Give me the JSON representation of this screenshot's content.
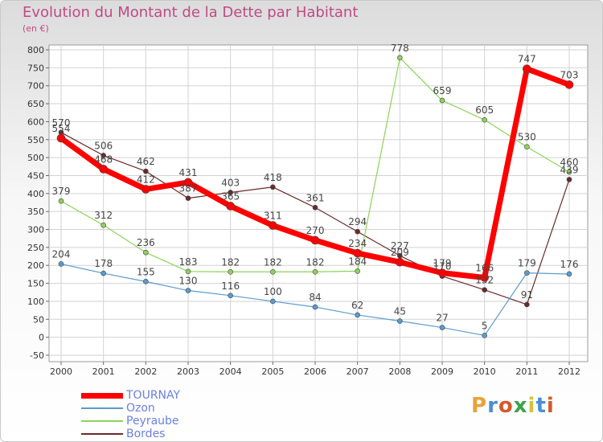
{
  "title": "Evolution du Montant de la Dette par Habitant",
  "subtitle": "(en €)",
  "brand": {
    "letters": [
      "P",
      "r",
      "o",
      "x",
      "i",
      "t",
      "i"
    ],
    "colors": [
      "#e8a23a",
      "#4a8fd6",
      "#d35a2a",
      "#3aa34a",
      "#d6c23a",
      "#4a8fd6",
      "#d35a2a"
    ]
  },
  "chart_data": {
    "type": "line",
    "x": [
      "2000",
      "2001",
      "2002",
      "2003",
      "2004",
      "2005",
      "2006",
      "2007",
      "2008",
      "2009",
      "2010",
      "2011",
      "2012"
    ],
    "ylim": [
      -50,
      800
    ],
    "yticks": [
      -50,
      0,
      50,
      100,
      150,
      200,
      250,
      300,
      350,
      400,
      450,
      500,
      550,
      600,
      650,
      700,
      750,
      800
    ],
    "grid": true,
    "legend_position": "bottom-left",
    "series": [
      {
        "name": "TOURNAY",
        "color": "#ff0000",
        "width": 7,
        "values": [
          554,
          468,
          412,
          431,
          365,
          311,
          270,
          234,
          209,
          179,
          166,
          747,
          703
        ],
        "labels": [
          "554",
          "468",
          "412",
          "431",
          "365",
          "311",
          "270",
          "234",
          "209",
          "179",
          "166",
          "747",
          "703"
        ]
      },
      {
        "name": "Ozon",
        "color": "#5b9bd0",
        "width": 1.2,
        "values": [
          204,
          178,
          155,
          130,
          116,
          100,
          84,
          62,
          45,
          27,
          5,
          179,
          176
        ],
        "labels": [
          "204",
          "178",
          "155",
          "130",
          "116",
          "100",
          "84",
          "62",
          "45",
          "27",
          "5",
          "179",
          "176"
        ]
      },
      {
        "name": "Peyraube",
        "color": "#8ed35a",
        "width": 1.2,
        "values": [
          379,
          312,
          236,
          183,
          182,
          182,
          182,
          184,
          778,
          659,
          605,
          530,
          460
        ],
        "labels": [
          "379",
          "312",
          "236",
          "183",
          "182",
          "182",
          "182",
          "184",
          "778",
          "659",
          "605",
          "530",
          "460"
        ]
      },
      {
        "name": "Bordes",
        "color": "#6b2a2a",
        "width": 1.2,
        "values": [
          570,
          506,
          462,
          387,
          403,
          418,
          361,
          294,
          227,
          170,
          132,
          91,
          439
        ],
        "labels": [
          "570",
          "506",
          "462",
          "387",
          "403",
          "418",
          "361",
          "294",
          "227",
          "170",
          "132",
          "91",
          "439"
        ]
      }
    ]
  }
}
